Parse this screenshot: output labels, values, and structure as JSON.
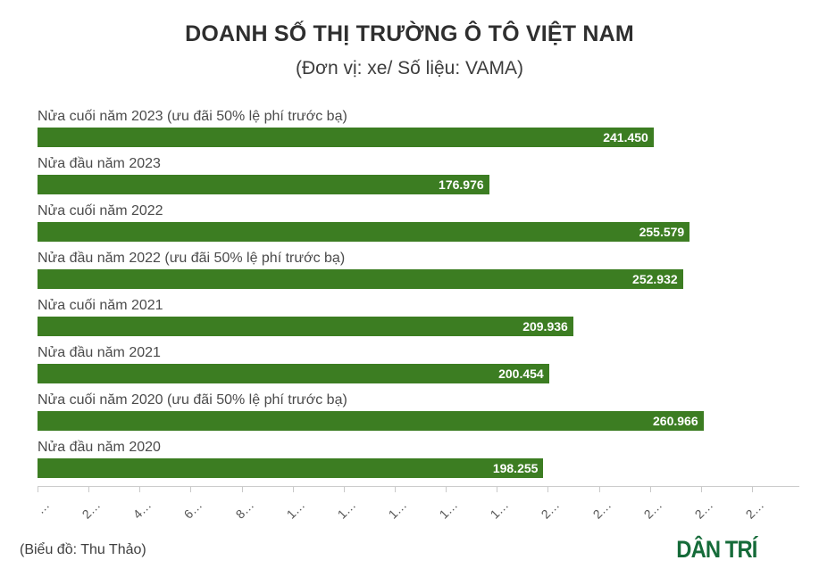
{
  "header": {
    "title": "DOANH SỐ THỊ TRƯỜNG Ô TÔ VIỆT NAM",
    "subtitle": "(Đơn vị: xe/ Số liệu: VAMA)"
  },
  "chart_data": {
    "type": "bar",
    "orientation": "horizontal",
    "title": "DOANH SỐ THỊ TRƯỜNG Ô TÔ VIỆT NAM",
    "subtitle": "(Đơn vị: xe/ Số liệu: VAMA)",
    "unit_note": "Đơn vị: xe",
    "source_note": "Số liệu: VAMA",
    "categories": [
      "Nửa cuối năm 2023 (ưu đãi 50% lệ phí trước bạ)",
      "Nửa đầu năm 2023",
      "Nửa cuối năm 2022",
      "Nửa đầu năm 2022 (ưu đãi 50% lệ phí trước bạ)",
      "Nửa cuối năm 2021",
      "Nửa đầu năm 2021",
      "Nửa cuối năm 2020 (ưu đãi 50% lệ phí trước bạ)",
      "Nửa đầu năm 2020"
    ],
    "values": [
      241450,
      176976,
      255579,
      252932,
      209936,
      200454,
      260966,
      198255
    ],
    "value_labels": [
      "241.450",
      "176.976",
      "255.579",
      "252.932",
      "209.936",
      "200.454",
      "260.966",
      "198.255"
    ],
    "xlim": [
      0,
      280000
    ],
    "x_ticks": [
      0,
      20000,
      40000,
      60000,
      80000,
      100000,
      120000,
      140000,
      160000,
      180000,
      200000,
      220000,
      240000,
      260000,
      280000
    ],
    "x_tick_labels_displayed": [
      "…",
      "2…",
      "4…",
      "6…",
      "8…",
      "1…",
      "1…",
      "1…",
      "1…",
      "1…",
      "2…",
      "2…",
      "2…",
      "2…",
      "2…"
    ],
    "grid": false,
    "legend": false,
    "bar_color": "#3c7d22",
    "value_label_color": "#ffffff",
    "category_label_color": "#4b4b4b",
    "axis_color": "#cccccc"
  },
  "footer": {
    "credit": "(Biểu đồ: Thu Thảo)",
    "logo_text": "DÂN TRÍ",
    "logo_color": "#156b39"
  }
}
